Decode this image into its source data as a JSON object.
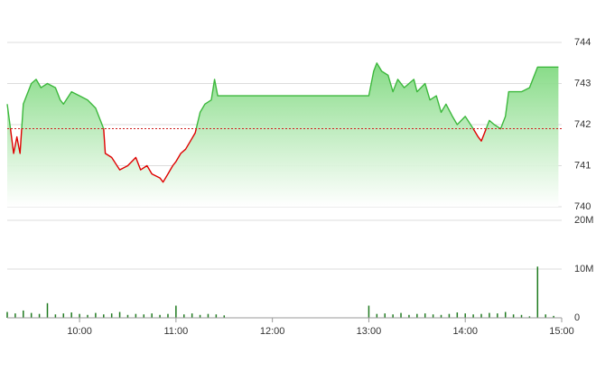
{
  "chart_data": [
    {
      "type": "line",
      "x": [
        "09:15",
        "09:17",
        "09:19",
        "09:21",
        "09:23",
        "09:25",
        "09:30",
        "09:33",
        "09:36",
        "09:40",
        "09:45",
        "09:48",
        "09:50",
        "09:55",
        "10:00",
        "10:05",
        "10:10",
        "10:13",
        "10:15",
        "10:16",
        "10:20",
        "10:25",
        "10:30",
        "10:35",
        "10:38",
        "10:42",
        "10:45",
        "10:50",
        "10:52",
        "10:55",
        "10:58",
        "11:00",
        "11:03",
        "11:06",
        "11:09",
        "11:12",
        "11:15",
        "11:18",
        "11:22",
        "11:24",
        "11:26",
        "11:30",
        "13:00",
        "13:03",
        "13:05",
        "13:08",
        "13:12",
        "13:15",
        "13:18",
        "13:22",
        "13:25",
        "13:28",
        "13:30",
        "13:35",
        "13:38",
        "13:42",
        "13:45",
        "13:48",
        "13:52",
        "13:55",
        "14:00",
        "14:05",
        "14:08",
        "14:10",
        "14:12",
        "14:15",
        "14:18",
        "14:22",
        "14:25",
        "14:27",
        "14:30",
        "14:35",
        "14:40",
        "14:45",
        "14:58"
      ],
      "values": [
        742.5,
        741.9,
        741.3,
        741.7,
        741.3,
        742.5,
        743.0,
        743.1,
        742.9,
        743.0,
        742.9,
        742.6,
        742.5,
        742.8,
        742.7,
        742.6,
        742.4,
        742.1,
        741.9,
        741.3,
        741.2,
        740.9,
        741.0,
        741.2,
        740.9,
        741.0,
        740.8,
        740.7,
        740.6,
        740.8,
        741.0,
        741.1,
        741.3,
        741.4,
        741.6,
        741.8,
        742.3,
        742.5,
        742.6,
        743.1,
        742.7,
        742.7,
        742.7,
        743.3,
        743.5,
        743.3,
        743.2,
        742.8,
        743.1,
        742.9,
        743.0,
        743.1,
        742.8,
        743.0,
        742.6,
        742.7,
        742.3,
        742.5,
        742.2,
        742.0,
        742.2,
        741.9,
        741.7,
        741.6,
        741.8,
        742.1,
        742.0,
        741.9,
        742.2,
        742.8,
        742.8,
        742.8,
        742.9,
        743.4,
        743.4
      ],
      "color": "#3cb83c",
      "down_color": "#e00000",
      "reference": 741.9,
      "reference_color": "#d02020",
      "xlim": [
        "09:15",
        "15:00"
      ],
      "ylim": [
        740,
        744
      ],
      "yticks": [
        740,
        741,
        742,
        743,
        744
      ],
      "grid": true
    },
    {
      "type": "bar",
      "x": [
        "09:15",
        "09:20",
        "09:25",
        "09:30",
        "09:35",
        "09:40",
        "09:45",
        "09:50",
        "09:55",
        "10:00",
        "10:05",
        "10:10",
        "10:15",
        "10:20",
        "10:25",
        "10:30",
        "10:35",
        "10:40",
        "10:45",
        "10:50",
        "10:55",
        "11:00",
        "11:05",
        "11:10",
        "11:15",
        "11:20",
        "11:25",
        "11:30",
        "13:00",
        "13:05",
        "13:10",
        "13:15",
        "13:20",
        "13:25",
        "13:30",
        "13:35",
        "13:40",
        "13:45",
        "13:50",
        "13:55",
        "14:00",
        "14:05",
        "14:10",
        "14:15",
        "14:20",
        "14:25",
        "14:30",
        "14:35",
        "14:40",
        "14:45",
        "14:50",
        "14:55"
      ],
      "values": [
        1200000,
        900000,
        1500000,
        1000000,
        800000,
        3000000,
        700000,
        900000,
        1100000,
        800000,
        600000,
        1000000,
        700000,
        900000,
        1200000,
        600000,
        800000,
        700000,
        900000,
        600000,
        800000,
        2500000,
        700000,
        900000,
        600000,
        800000,
        700000,
        500000,
        2500000,
        800000,
        900000,
        700000,
        1000000,
        600000,
        800000,
        900000,
        700000,
        600000,
        800000,
        1100000,
        900000,
        700000,
        800000,
        1000000,
        900000,
        1200000,
        700000,
        600000,
        300000,
        10500000,
        700000,
        400000
      ],
      "color": "#1f7a1f",
      "xlim": [
        "09:15",
        "15:00"
      ],
      "xticks": [
        "10:00",
        "11:00",
        "12:00",
        "13:00",
        "14:00",
        "15:00"
      ],
      "ylim": [
        0,
        20000000
      ],
      "yticks": [
        0,
        {
          "value": 10000000,
          "label": "10M"
        },
        {
          "value": 20000000,
          "label": "20M"
        }
      ],
      "grid": true
    }
  ]
}
